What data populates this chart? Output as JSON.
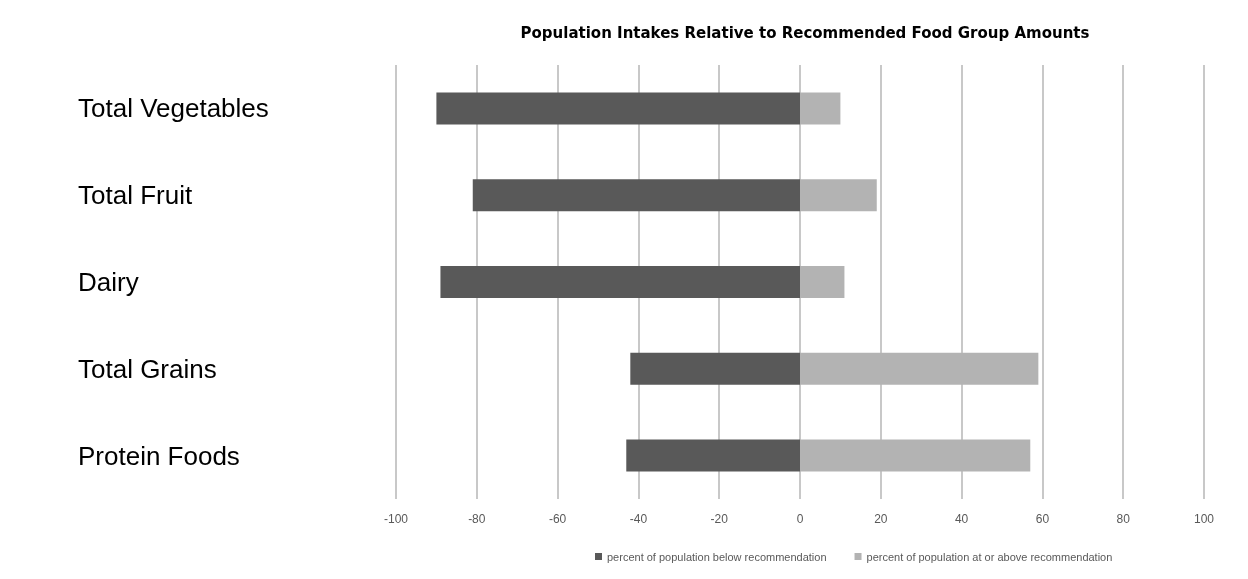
{
  "chart_data": {
    "type": "bar",
    "title": "Population Intakes Relative to Recommended Food Group Amounts",
    "orientation": "horizontal",
    "stacked": true,
    "categories": [
      "Total Vegetables",
      "Total Fruit",
      "Dairy",
      "Total Grains",
      "Protein Foods"
    ],
    "series": [
      {
        "name": "percent of population below recommendation",
        "color": "#595959",
        "values": [
          -90,
          -81,
          -89,
          -42,
          -43
        ]
      },
      {
        "name": "percent of population at or above recommendation",
        "color": "#b3b3b3",
        "values": [
          10,
          19,
          11,
          59,
          57
        ]
      }
    ],
    "xlim": [
      -100,
      100
    ],
    "xticks": [
      -100,
      -80,
      -60,
      -40,
      -20,
      0,
      20,
      40,
      60,
      80,
      100
    ],
    "grid": "x",
    "legend": "bottom"
  }
}
